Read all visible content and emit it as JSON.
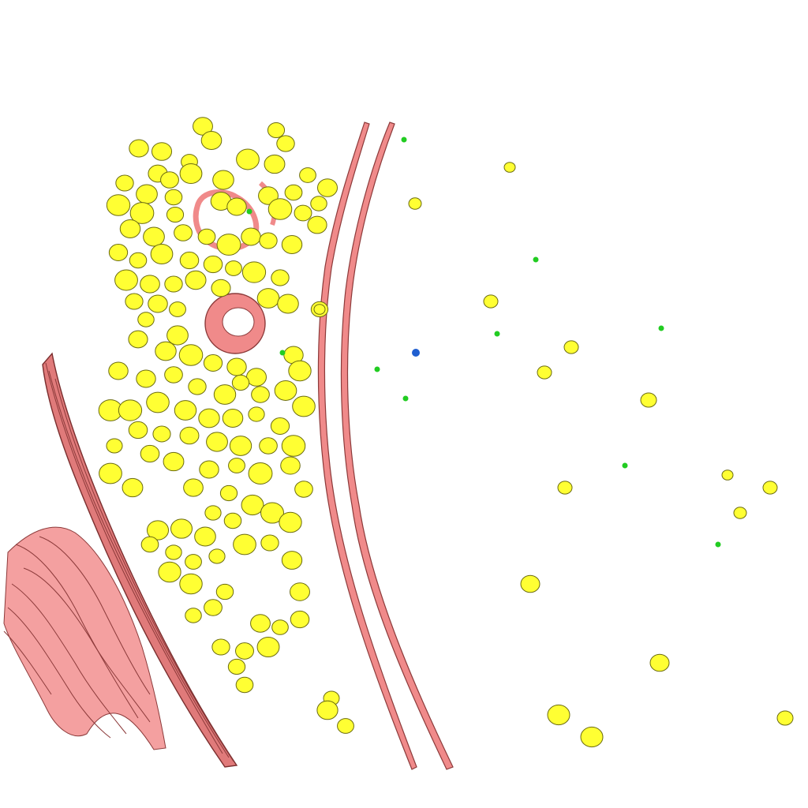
{
  "scene": {
    "background": "#ffffff",
    "colors": {
      "membrane": "#f08a8a",
      "membrane_edge": "#8c3a3a",
      "vesicle": "#ffff33",
      "vesicle_edge": "#6b6b10",
      "green_dot": "#22cc22",
      "blue_dot": "#1f5fd0"
    }
  }
}
